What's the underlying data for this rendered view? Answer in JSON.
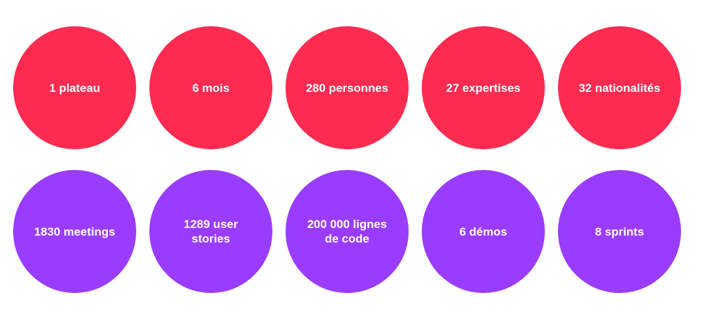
{
  "rows": [
    [
      [
        "1 plateau"
      ],
      [
        "6 mois"
      ],
      [
        "280 personnes"
      ],
      [
        "27 expertises"
      ],
      [
        "32 nationalités"
      ]
    ],
    [
      [
        "1830 meetings"
      ],
      [
        "1289 user",
        "stories"
      ],
      [
        "200 000 lignes",
        "de code"
      ],
      [
        "6 démos"
      ],
      [
        "8 sprints"
      ]
    ]
  ]
}
